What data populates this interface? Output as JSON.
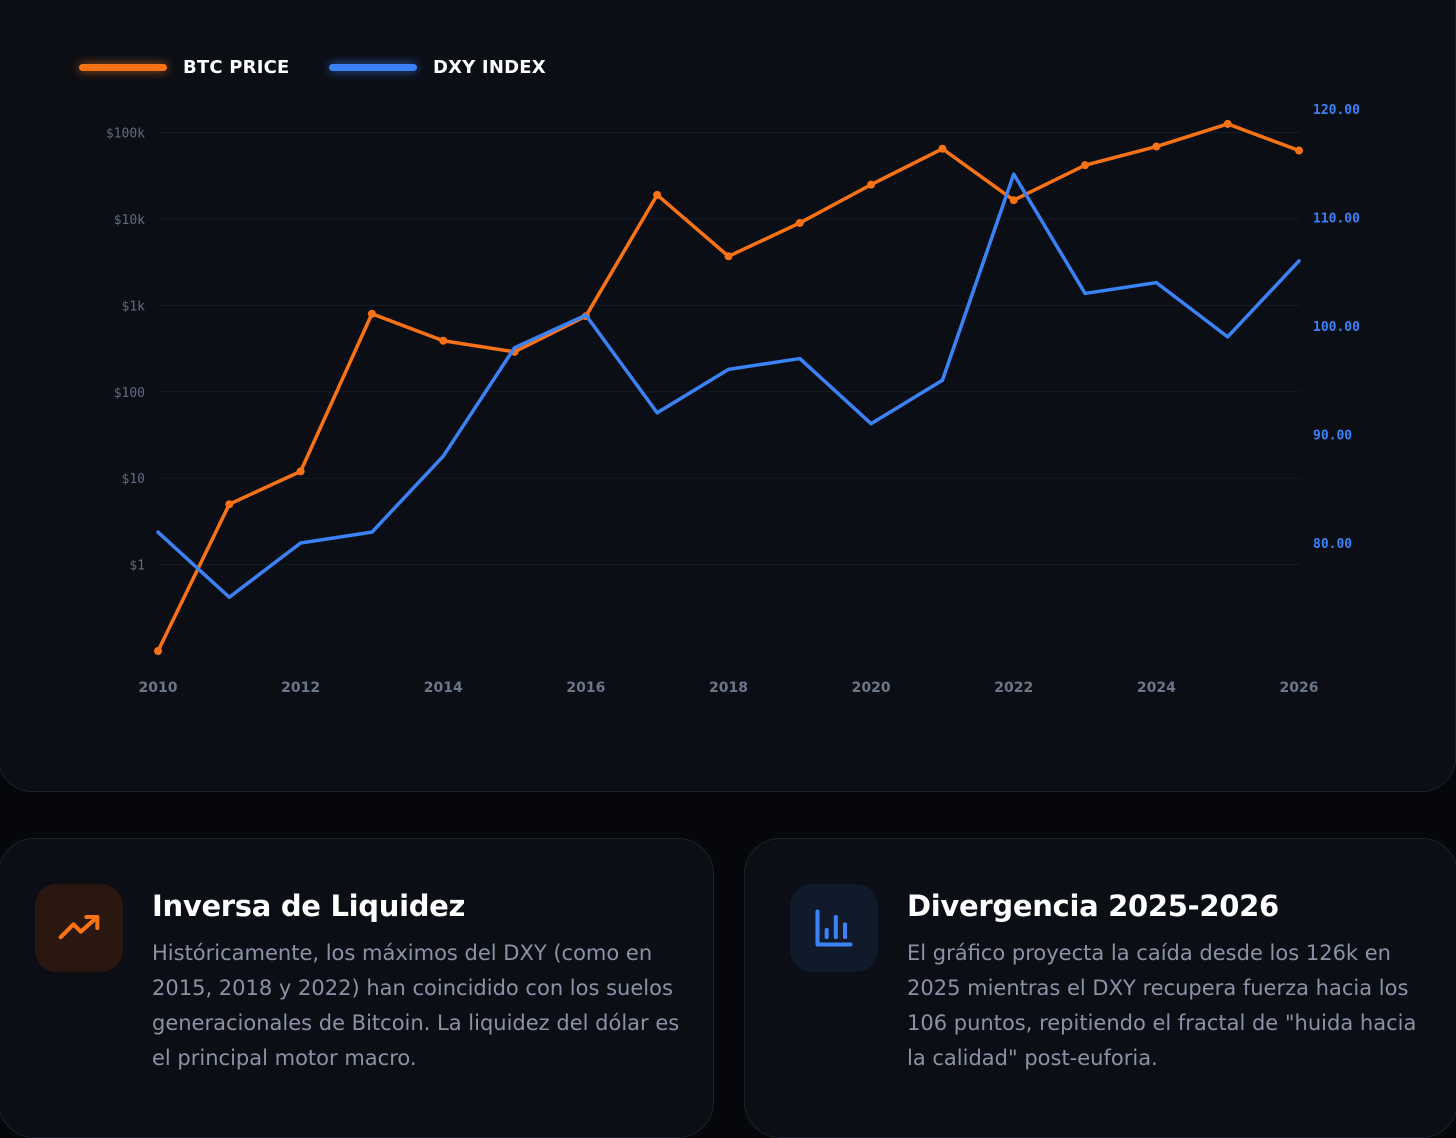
{
  "chart_data": {
    "type": "line",
    "x": [
      2010,
      2011,
      2012,
      2013,
      2014,
      2015,
      2016,
      2017,
      2018,
      2019,
      2020,
      2021,
      2022,
      2023,
      2024,
      2025,
      2026
    ],
    "x_ticks": [
      "2010",
      "2012",
      "2014",
      "2016",
      "2018",
      "2020",
      "2022",
      "2024",
      "2026"
    ],
    "series": [
      {
        "name": "BTC PRICE",
        "axis": "left",
        "scale": "log",
        "color": "#f97316",
        "values": [
          0.1,
          5,
          12,
          800,
          390,
          290,
          750,
          19000,
          3700,
          9000,
          25000,
          65000,
          16500,
          42000,
          69000,
          126000,
          62000
        ]
      },
      {
        "name": "DXY INDEX",
        "axis": "right",
        "scale": "linear",
        "color": "#3b82f6",
        "values": [
          81,
          75,
          80,
          81,
          88,
          98,
          101,
          92,
          96,
          97,
          91,
          95,
          114,
          103,
          104,
          99,
          106
        ]
      }
    ],
    "left_axis": {
      "ticks": [
        "$1",
        "$10",
        "$100",
        "$1k",
        "$10k",
        "$100k"
      ],
      "tick_values": [
        1,
        10,
        100,
        1000,
        10000,
        100000
      ],
      "range": [
        0.1,
        100000
      ]
    },
    "right_axis": {
      "ticks": [
        "80.00",
        "90.00",
        "100.00",
        "110.00",
        "120.00"
      ],
      "tick_values": [
        80,
        90,
        100,
        110,
        120
      ],
      "range": [
        80,
        120
      ]
    },
    "grid": true,
    "legend_position": "top-left"
  },
  "legend": {
    "btc_label": "BTC PRICE",
    "dxy_label": "DXY INDEX"
  },
  "cards": [
    {
      "title": "Inversa de Liquidez",
      "icon": "trending-up-icon",
      "body": "Históricamente, los máximos del DXY (como en 2015, 2018 y 2022) han coincidido con los suelos generacionales de Bitcoin. La liquidez del dólar es el principal motor macro."
    },
    {
      "title": "Divergencia 2025-2026",
      "icon": "bar-chart-icon",
      "body": "El gráfico proyecta la caída desde los 126k en 2025 mientras el DXY recupera fuerza hacia los 106 puntos, repitiendo el fractal de \"huida hacia la calidad\" post-euforia."
    }
  ],
  "colors": {
    "btc": "#f97316",
    "dxy": "#3b82f6",
    "background": "#05070b",
    "card": "#0b0e15"
  }
}
